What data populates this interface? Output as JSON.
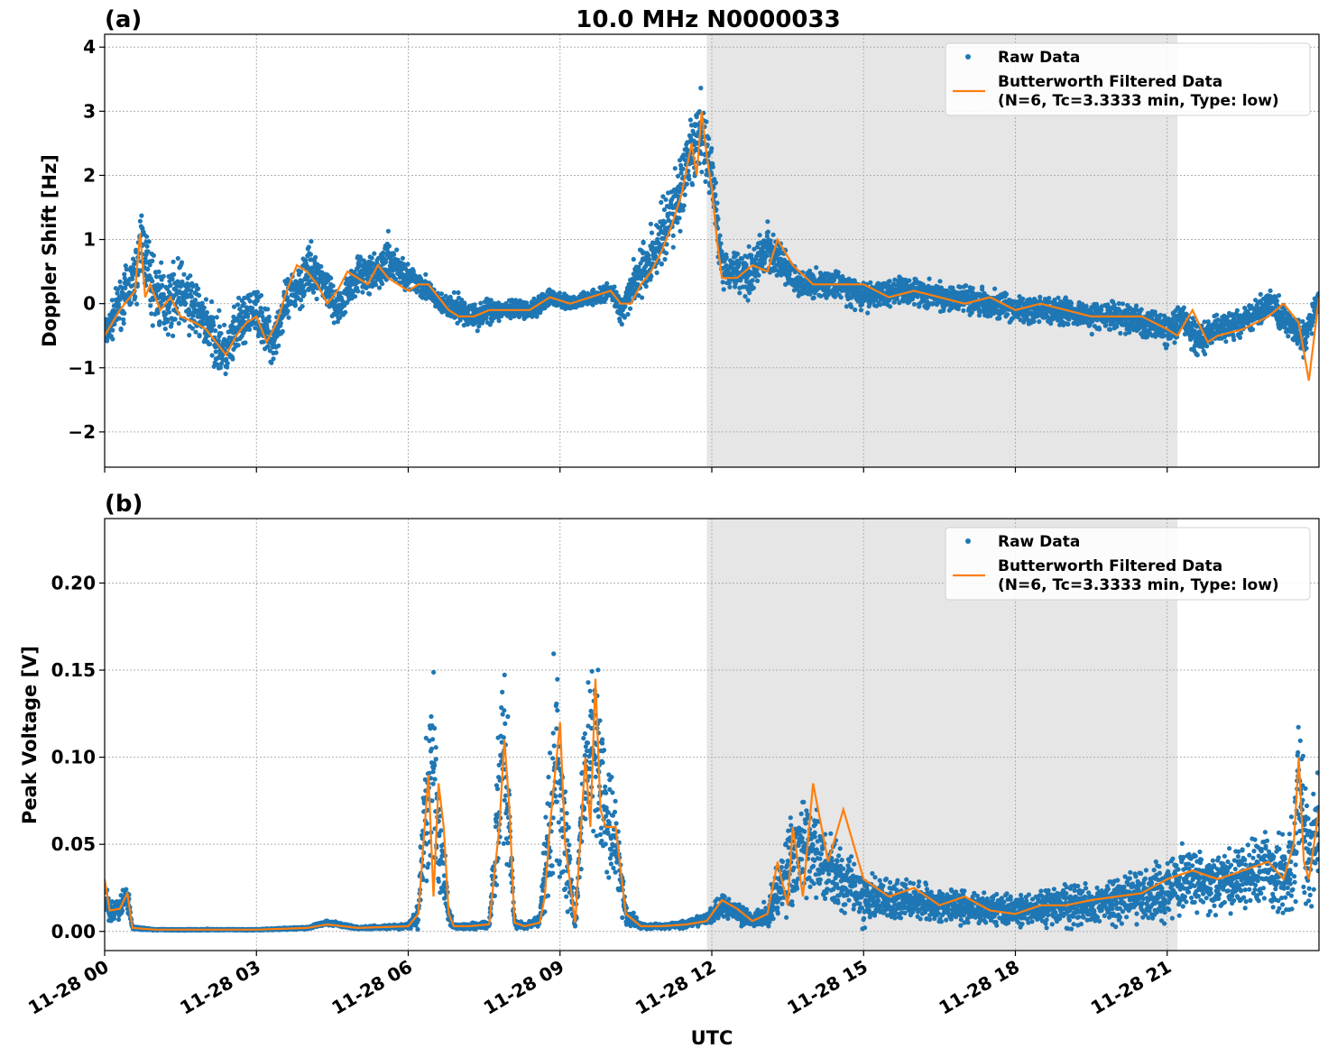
{
  "figure": {
    "title": "10.0 MHz N0000033",
    "xlabel": "UTC",
    "x_ticks": [
      "11-28 00",
      "11-28 03",
      "11-28 06",
      "11-28 09",
      "11-28 12",
      "11-28 15",
      "11-28 18",
      "11-28 21"
    ],
    "colors": {
      "raw": "#1f77b4",
      "filtered": "#ff7f0e",
      "shade": "#e6e6e6"
    }
  },
  "chart_data": [
    {
      "type": "scatter",
      "panel_label": "(a)",
      "ylabel": "Doppler Shift [Hz]",
      "xlim": [
        0,
        24
      ],
      "ylim": [
        -2.55,
        4.2
      ],
      "y_ticks": [
        -2,
        -1,
        0,
        1,
        2,
        3,
        4
      ],
      "y_tick_labels": [
        "−2",
        "−1",
        "0",
        "1",
        "2",
        "3",
        "4"
      ],
      "shaded_span": [
        11.9,
        21.2
      ],
      "grid": true,
      "legend_position": "top-right",
      "series": [
        {
          "name": "Raw Data",
          "style": "points",
          "x": [
            0,
            0.3,
            0.6,
            0.75,
            0.9,
            1.2,
            1.5,
            2.0,
            2.4,
            2.7,
            3.0,
            3.3,
            3.6,
            4.0,
            4.3,
            4.6,
            5.0,
            5.3,
            5.6,
            6.0,
            6.3,
            6.6,
            7.0,
            7.3,
            7.6,
            8.0,
            8.4,
            8.8,
            9.2,
            9.6,
            10.0,
            10.2,
            10.5,
            10.8,
            11.1,
            11.4,
            11.6,
            11.8,
            12.0,
            12.2,
            12.5,
            12.8,
            13.1,
            13.4,
            13.7,
            14.0,
            14.5,
            15.0,
            15.5,
            16.0,
            16.5,
            17.0,
            17.5,
            18.0,
            18.5,
            19.0,
            19.5,
            20.0,
            20.5,
            21.0,
            21.3,
            21.6,
            22.0,
            22.5,
            23.0,
            23.4,
            23.7,
            24.0
          ],
          "y": [
            -0.5,
            0.0,
            0.4,
            1.0,
            0.3,
            0.0,
            0.2,
            -0.3,
            -0.8,
            -0.3,
            -0.1,
            -0.6,
            0.0,
            0.5,
            0.4,
            -0.1,
            0.5,
            0.4,
            0.7,
            0.4,
            0.3,
            0.0,
            -0.1,
            -0.2,
            -0.1,
            -0.1,
            -0.1,
            0.1,
            0.0,
            0.1,
            0.2,
            -0.1,
            0.4,
            0.7,
            1.2,
            1.8,
            2.3,
            2.7,
            2.0,
            0.6,
            0.5,
            0.5,
            0.9,
            0.6,
            0.3,
            0.3,
            0.3,
            0.1,
            0.2,
            0.2,
            0.1,
            0.1,
            0.0,
            -0.1,
            -0.1,
            -0.1,
            -0.2,
            -0.2,
            -0.3,
            -0.4,
            -0.2,
            -0.6,
            -0.4,
            -0.3,
            0.0,
            -0.3,
            -0.6,
            0.1
          ],
          "spread": [
            0.3,
            0.5,
            0.6,
            0.9,
            0.8,
            0.7,
            0.7,
            0.6,
            0.6,
            0.6,
            0.5,
            0.5,
            0.5,
            0.6,
            0.4,
            0.4,
            0.4,
            0.4,
            0.5,
            0.3,
            0.3,
            0.2,
            0.3,
            0.3,
            0.25,
            0.2,
            0.2,
            0.2,
            0.15,
            0.15,
            0.2,
            0.3,
            0.5,
            0.7,
            0.8,
            0.9,
            0.9,
            0.8,
            0.7,
            0.5,
            0.5,
            0.5,
            0.5,
            0.4,
            0.3,
            0.3,
            0.3,
            0.3,
            0.3,
            0.3,
            0.3,
            0.3,
            0.3,
            0.3,
            0.3,
            0.3,
            0.3,
            0.3,
            0.3,
            0.35,
            0.35,
            0.35,
            0.3,
            0.3,
            0.3,
            0.3,
            0.35,
            0.25
          ]
        },
        {
          "name": "Butterworth Filtered Data\n(N=6, Tc=3.3333 min, Type: low)",
          "legend_lines": [
            "Butterworth Filtered Data",
            "(N=6, Tc=3.3333 min, Type: low)"
          ],
          "style": "line",
          "x": [
            0,
            0.3,
            0.6,
            0.7,
            0.8,
            0.9,
            1.1,
            1.3,
            1.5,
            1.8,
            2.0,
            2.2,
            2.4,
            2.6,
            2.8,
            3.0,
            3.2,
            3.4,
            3.6,
            3.8,
            4.0,
            4.2,
            4.4,
            4.6,
            4.8,
            5.0,
            5.2,
            5.4,
            5.6,
            5.8,
            6.0,
            6.2,
            6.4,
            6.6,
            6.8,
            7.0,
            7.3,
            7.6,
            8.0,
            8.4,
            8.8,
            9.2,
            9.6,
            10.0,
            10.2,
            10.4,
            10.6,
            10.8,
            11.0,
            11.2,
            11.4,
            11.6,
            11.7,
            11.8,
            11.9,
            12.0,
            12.1,
            12.2,
            12.5,
            12.8,
            13.1,
            13.3,
            13.6,
            14.0,
            14.5,
            15.0,
            15.5,
            16.0,
            16.5,
            17.0,
            17.5,
            18.0,
            18.5,
            19.0,
            19.5,
            20.0,
            20.5,
            21.0,
            21.2,
            21.5,
            21.8,
            22.0,
            22.5,
            23.0,
            23.3,
            23.6,
            23.8,
            24.0
          ],
          "y": [
            -0.5,
            -0.1,
            0.2,
            1.1,
            0.1,
            0.3,
            -0.1,
            0.1,
            -0.2,
            -0.3,
            -0.4,
            -0.6,
            -0.8,
            -0.5,
            -0.3,
            -0.2,
            -0.6,
            -0.3,
            0.2,
            0.6,
            0.5,
            0.3,
            0.0,
            0.2,
            0.5,
            0.4,
            0.3,
            0.6,
            0.4,
            0.3,
            0.2,
            0.3,
            0.3,
            0.1,
            -0.1,
            -0.2,
            -0.2,
            -0.1,
            -0.1,
            -0.1,
            0.1,
            0.0,
            0.1,
            0.2,
            0.0,
            0.0,
            0.3,
            0.5,
            0.8,
            1.2,
            1.7,
            2.5,
            2.0,
            3.0,
            2.3,
            1.8,
            1.0,
            0.4,
            0.4,
            0.6,
            0.5,
            1.0,
            0.6,
            0.3,
            0.3,
            0.3,
            0.1,
            0.2,
            0.1,
            0.0,
            0.1,
            -0.1,
            0.0,
            -0.1,
            -0.2,
            -0.2,
            -0.2,
            -0.4,
            -0.5,
            -0.1,
            -0.6,
            -0.5,
            -0.4,
            -0.2,
            0.0,
            -0.3,
            -1.2,
            0.1
          ]
        }
      ]
    },
    {
      "type": "scatter",
      "panel_label": "(b)",
      "ylabel": "Peak Voltage [V]",
      "xlim": [
        0,
        24
      ],
      "ylim": [
        -0.011,
        0.237
      ],
      "y_ticks": [
        0.0,
        0.05,
        0.1,
        0.15,
        0.2
      ],
      "y_tick_labels": [
        "0.00",
        "0.05",
        "0.10",
        "0.15",
        "0.20"
      ],
      "shaded_span": [
        11.9,
        21.2
      ],
      "grid": true,
      "legend_position": "top-right",
      "series": [
        {
          "name": "Raw Data",
          "style": "points",
          "x": [
            0,
            0.1,
            0.3,
            0.45,
            0.55,
            1.0,
            2.0,
            3.0,
            4.0,
            4.4,
            5.0,
            6.0,
            6.2,
            6.3,
            6.5,
            6.6,
            6.8,
            6.9,
            7.2,
            7.6,
            7.8,
            7.9,
            8.0,
            8.1,
            8.3,
            8.6,
            8.8,
            8.9,
            9.0,
            9.1,
            9.3,
            9.5,
            9.7,
            9.9,
            10.1,
            10.3,
            10.6,
            11.0,
            11.5,
            11.9,
            12.2,
            12.5,
            12.8,
            13.1,
            13.4,
            13.6,
            13.8,
            14.0,
            14.3,
            14.6,
            15.0,
            15.5,
            16.0,
            16.5,
            17.0,
            17.5,
            18.0,
            18.5,
            19.0,
            19.5,
            20.0,
            20.5,
            21.0,
            21.5,
            22.0,
            22.5,
            23.0,
            23.4,
            23.6,
            23.8,
            24.0
          ],
          "y": [
            0.02,
            0.012,
            0.013,
            0.02,
            0.002,
            0.001,
            0.001,
            0.001,
            0.002,
            0.005,
            0.002,
            0.003,
            0.01,
            0.06,
            0.09,
            0.06,
            0.01,
            0.003,
            0.003,
            0.004,
            0.08,
            0.1,
            0.06,
            0.005,
            0.003,
            0.006,
            0.06,
            0.1,
            0.08,
            0.05,
            0.005,
            0.1,
            0.11,
            0.07,
            0.05,
            0.01,
            0.003,
            0.003,
            0.004,
            0.007,
            0.015,
            0.012,
            0.006,
            0.01,
            0.03,
            0.04,
            0.05,
            0.045,
            0.035,
            0.03,
            0.02,
            0.018,
            0.018,
            0.015,
            0.015,
            0.012,
            0.012,
            0.013,
            0.015,
            0.016,
            0.018,
            0.02,
            0.025,
            0.03,
            0.028,
            0.03,
            0.035,
            0.03,
            0.08,
            0.04,
            0.06
          ],
          "spread": [
            0.01,
            0.01,
            0.008,
            0.012,
            0.001,
            0.0005,
            0.0005,
            0.0005,
            0.001,
            0.002,
            0.001,
            0.002,
            0.01,
            0.05,
            0.07,
            0.05,
            0.008,
            0.002,
            0.002,
            0.003,
            0.06,
            0.08,
            0.05,
            0.004,
            0.002,
            0.005,
            0.06,
            0.08,
            0.07,
            0.05,
            0.004,
            0.06,
            0.07,
            0.05,
            0.04,
            0.008,
            0.002,
            0.002,
            0.003,
            0.005,
            0.01,
            0.01,
            0.005,
            0.01,
            0.03,
            0.04,
            0.04,
            0.035,
            0.03,
            0.025,
            0.02,
            0.015,
            0.015,
            0.013,
            0.013,
            0.012,
            0.012,
            0.013,
            0.015,
            0.017,
            0.018,
            0.02,
            0.025,
            0.025,
            0.025,
            0.027,
            0.03,
            0.03,
            0.06,
            0.035,
            0.04
          ]
        },
        {
          "name": "Butterworth Filtered Data\n(N=6, Tc=3.3333 min, Type: low)",
          "legend_lines": [
            "Butterworth Filtered Data",
            "(N=6, Tc=3.3333 min, Type: low)"
          ],
          "style": "line",
          "x": [
            0,
            0.1,
            0.3,
            0.45,
            0.55,
            1.0,
            2.0,
            3.0,
            4.0,
            4.4,
            5.0,
            6.0,
            6.2,
            6.3,
            6.4,
            6.5,
            6.6,
            6.7,
            6.8,
            6.9,
            7.2,
            7.6,
            7.8,
            7.9,
            8.0,
            8.1,
            8.3,
            8.6,
            8.7,
            8.8,
            8.9,
            9.0,
            9.1,
            9.3,
            9.5,
            9.6,
            9.7,
            9.8,
            9.9,
            10.1,
            10.3,
            10.6,
            11.0,
            11.5,
            11.9,
            12.2,
            12.5,
            12.8,
            13.1,
            13.3,
            13.5,
            13.6,
            13.8,
            14.0,
            14.3,
            14.6,
            15.0,
            15.5,
            16.0,
            16.5,
            17.0,
            17.5,
            18.0,
            18.5,
            19.0,
            19.5,
            20.0,
            20.5,
            21.0,
            21.5,
            22.0,
            22.5,
            23.0,
            23.3,
            23.5,
            23.6,
            23.7,
            23.8,
            24.0
          ],
          "y": [
            0.03,
            0.012,
            0.013,
            0.022,
            0.002,
            0.001,
            0.001,
            0.001,
            0.002,
            0.004,
            0.002,
            0.003,
            0.01,
            0.05,
            0.09,
            0.02,
            0.085,
            0.06,
            0.01,
            0.003,
            0.003,
            0.004,
            0.06,
            0.11,
            0.07,
            0.005,
            0.003,
            0.005,
            0.02,
            0.06,
            0.09,
            0.12,
            0.05,
            0.005,
            0.1,
            0.06,
            0.145,
            0.07,
            0.06,
            0.06,
            0.01,
            0.003,
            0.003,
            0.004,
            0.006,
            0.018,
            0.013,
            0.006,
            0.01,
            0.04,
            0.015,
            0.06,
            0.02,
            0.085,
            0.04,
            0.07,
            0.03,
            0.02,
            0.025,
            0.015,
            0.02,
            0.012,
            0.01,
            0.015,
            0.015,
            0.018,
            0.02,
            0.022,
            0.03,
            0.035,
            0.03,
            0.035,
            0.04,
            0.03,
            0.05,
            0.1,
            0.04,
            0.03,
            0.07
          ]
        }
      ]
    }
  ]
}
